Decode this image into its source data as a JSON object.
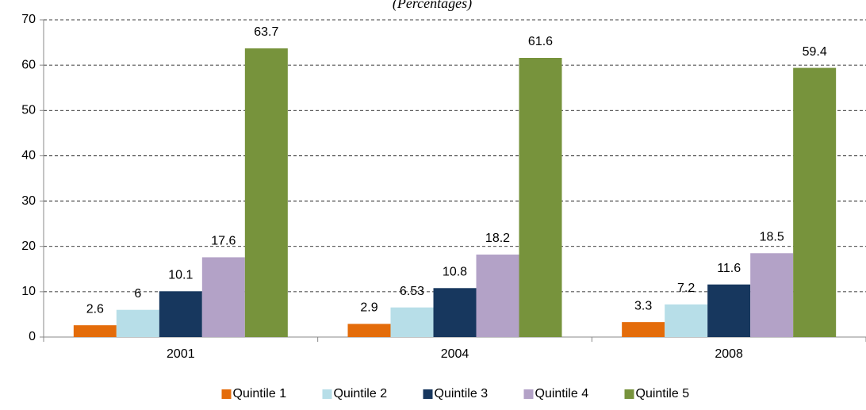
{
  "chart_data": {
    "type": "bar",
    "subtitle": "(Percentages)",
    "categories": [
      "2001",
      "2004",
      "2008"
    ],
    "series": [
      {
        "name": "Quintile 1",
        "color": "#e46c0a",
        "values": [
          2.6,
          2.9,
          3.3
        ]
      },
      {
        "name": "Quintile 2",
        "color": "#b7dee8",
        "values": [
          6,
          6.53,
          7.2
        ]
      },
      {
        "name": "Quintile 3",
        "color": "#17375e",
        "values": [
          10.1,
          10.8,
          11.6
        ]
      },
      {
        "name": "Quintile 4",
        "color": "#b3a2c7",
        "values": [
          17.6,
          18.2,
          18.5
        ]
      },
      {
        "name": "Quintile 5",
        "color": "#77933c",
        "values": [
          63.7,
          61.6,
          59.4
        ]
      }
    ],
    "ylim": [
      0,
      70
    ],
    "yticks": [
      0,
      10,
      20,
      30,
      40,
      50,
      60,
      70
    ],
    "grid": true,
    "legend": "bottom"
  }
}
